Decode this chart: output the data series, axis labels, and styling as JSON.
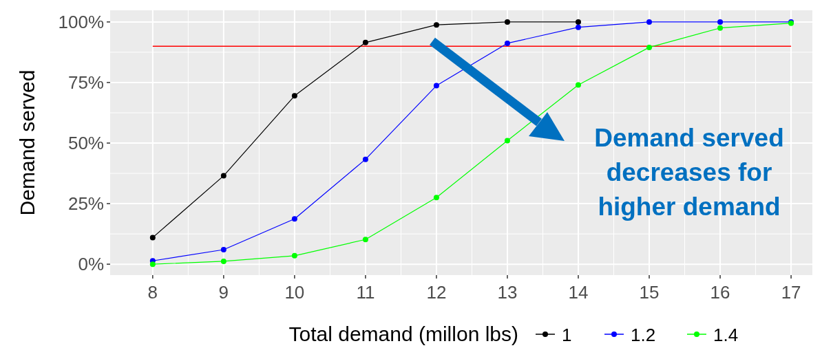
{
  "chart_data": {
    "type": "line",
    "xlabel": "Total demand (millon lbs)",
    "ylabel": "Demand served",
    "x": [
      8,
      9,
      10,
      11,
      12,
      13,
      14,
      15,
      16,
      17
    ],
    "series": [
      {
        "name": "1",
        "color": "#000000",
        "values": [
          11,
          36.5,
          69.5,
          91.5,
          98.8,
          100,
          100,
          null,
          null,
          null
        ]
      },
      {
        "name": "1.2",
        "color": "#0000ff",
        "values": [
          1.4,
          6,
          18.7,
          43.3,
          73.7,
          91.2,
          97.8,
          100,
          100,
          100
        ]
      },
      {
        "name": "1.4",
        "color": "#00ff00",
        "values": [
          0,
          1.2,
          3.5,
          10.2,
          27.5,
          51,
          74,
          89.5,
          97.5,
          99.5
        ]
      }
    ],
    "xlim": [
      7.4,
      17.3
    ],
    "xticks": [
      8,
      9,
      10,
      11,
      12,
      13,
      14,
      15,
      16,
      17
    ],
    "ylim": [
      -4.5,
      104.8
    ],
    "yticks": [
      {
        "value": 0,
        "label": "0%"
      },
      {
        "value": 25,
        "label": "25%"
      },
      {
        "value": 50,
        "label": "50%"
      },
      {
        "value": 75,
        "label": "75%"
      },
      {
        "value": 100,
        "label": "100%"
      }
    ],
    "ref_lines": [
      {
        "axis": "y",
        "value": 90,
        "color": "#ff0000"
      }
    ],
    "annotations": [
      "Demand served decreases for higher demand"
    ],
    "grid": true,
    "legend": "bottom",
    "marker": "circle",
    "line_style": "solid"
  }
}
